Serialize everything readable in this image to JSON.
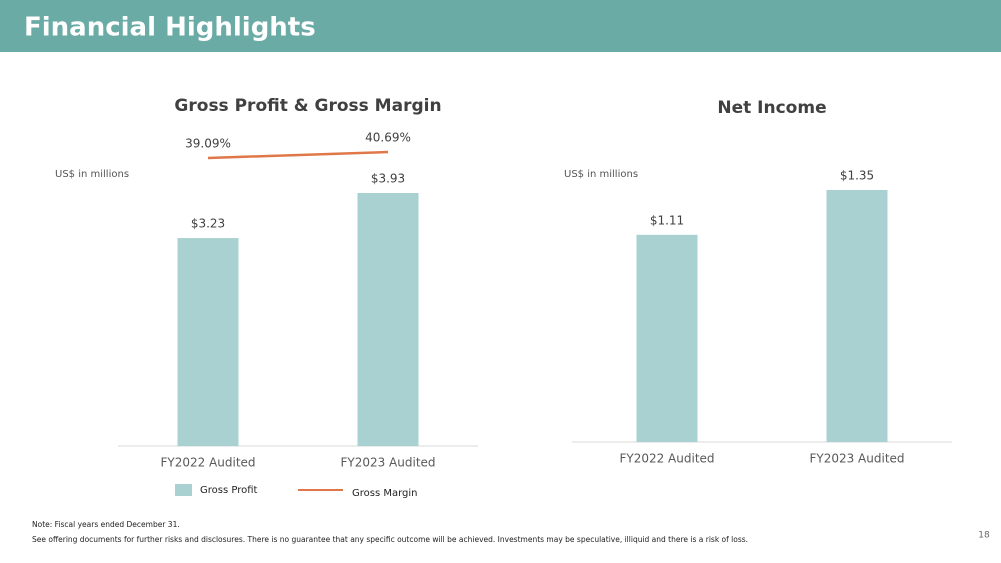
{
  "header": {
    "title": "Financial Highlights"
  },
  "notes": [
    "Note: Fiscal years ended December 31.",
    "See offering documents for further risks and disclosures. There is no guarantee that any specific outcome will be achieved. Investments may be speculative, illiquid and there is a risk of loss."
  ],
  "page_number": "18",
  "chart_data": [
    {
      "type": "bar",
      "title": "Gross Profit & Gross Margin",
      "y_label": "US$ in millions",
      "categories": [
        "FY2022 Audited",
        "FY2023 Audited"
      ],
      "series": [
        {
          "name": "Gross Profit",
          "color": "#a9d1d2",
          "values": [
            3.23,
            3.93
          ],
          "value_labels": [
            "$3.23",
            "$3.93"
          ]
        },
        {
          "name": "Gross Margin",
          "color": "#e07748",
          "type": "line",
          "axis": "y2",
          "values": [
            39.09,
            40.69
          ],
          "value_labels": [
            "39.09%",
            "40.69%"
          ]
        }
      ],
      "legend": "bottom"
    },
    {
      "type": "bar",
      "title": "Net Income",
      "y_label": "US$ in millions",
      "categories": [
        "FY2022 Audited",
        "FY2023 Audited"
      ],
      "series": [
        {
          "name": "Net Income",
          "color": "#a9d1d2",
          "values": [
            1.11,
            1.35
          ],
          "value_labels": [
            "$1.11",
            "$1.35"
          ]
        }
      ]
    }
  ]
}
